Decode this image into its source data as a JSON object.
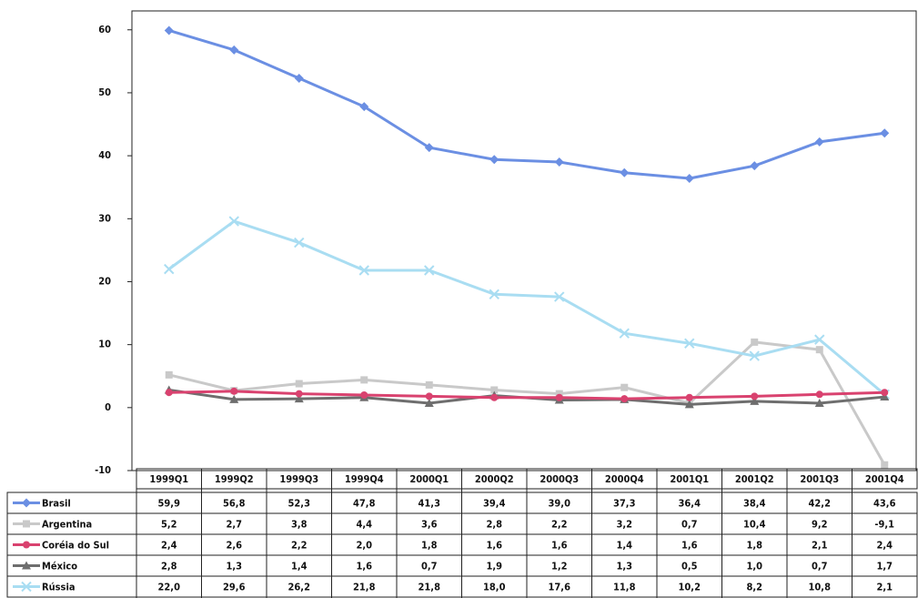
{
  "chart_data": {
    "type": "line",
    "categories": [
      "1999Q1",
      "1999Q2",
      "1999Q3",
      "1999Q4",
      "2000Q1",
      "2000Q2",
      "2000Q3",
      "2000Q4",
      "2001Q1",
      "2001Q2",
      "2001Q3",
      "2001Q4"
    ],
    "ylim": [
      -10,
      63
    ],
    "yticks": [
      -10,
      0,
      10,
      20,
      30,
      40,
      50,
      60
    ],
    "grid": false,
    "series": [
      {
        "name": "Brasil",
        "color": "#6b8fe3",
        "values": [
          59.9,
          56.8,
          52.3,
          47.8,
          41.3,
          39.4,
          39.0,
          37.3,
          36.4,
          38.4,
          42.2,
          43.6
        ],
        "value_labels": [
          "59,9",
          "56,8",
          "52,3",
          "47,8",
          "41,3",
          "39,4",
          "39,0",
          "37,3",
          "36,4",
          "38,4",
          "42,2",
          "43,6"
        ]
      },
      {
        "name": "Argentina",
        "color": "#c9c9c9",
        "values": [
          5.2,
          2.7,
          3.8,
          4.4,
          3.6,
          2.8,
          2.2,
          3.2,
          0.7,
          10.4,
          9.2,
          -9.1
        ],
        "value_labels": [
          "5,2",
          "2,7",
          "3,8",
          "4,4",
          "3,6",
          "2,8",
          "2,2",
          "3,2",
          "0,7",
          "10,4",
          "9,2",
          "-9,1"
        ]
      },
      {
        "name": "Coréia do Sul",
        "color": "#d9426f",
        "values": [
          2.4,
          2.6,
          2.2,
          2.0,
          1.8,
          1.6,
          1.6,
          1.4,
          1.6,
          1.8,
          2.1,
          2.4
        ],
        "value_labels": [
          "2,4",
          "2,6",
          "2,2",
          "2,0",
          "1,8",
          "1,6",
          "1,6",
          "1,4",
          "1,6",
          "1,8",
          "2,1",
          "2,4"
        ]
      },
      {
        "name": "México",
        "color": "#6e6e6e",
        "values": [
          2.8,
          1.3,
          1.4,
          1.6,
          0.7,
          1.9,
          1.2,
          1.3,
          0.5,
          1.0,
          0.7,
          1.7
        ],
        "value_labels": [
          "2,8",
          "1,3",
          "1,4",
          "1,6",
          "0,7",
          "1,9",
          "1,2",
          "1,3",
          "0,5",
          "1,0",
          "0,7",
          "1,7"
        ]
      },
      {
        "name": "Rússia",
        "color": "#a9ddf2",
        "values": [
          22.0,
          29.6,
          26.2,
          21.8,
          21.8,
          18.0,
          17.6,
          11.8,
          10.2,
          8.2,
          10.8,
          2.1
        ],
        "value_labels": [
          "22,0",
          "29,6",
          "26,2",
          "21,8",
          "21,8",
          "18,0",
          "17,6",
          "11,8",
          "10,2",
          "8,2",
          "10,8",
          "2,1"
        ]
      }
    ]
  }
}
